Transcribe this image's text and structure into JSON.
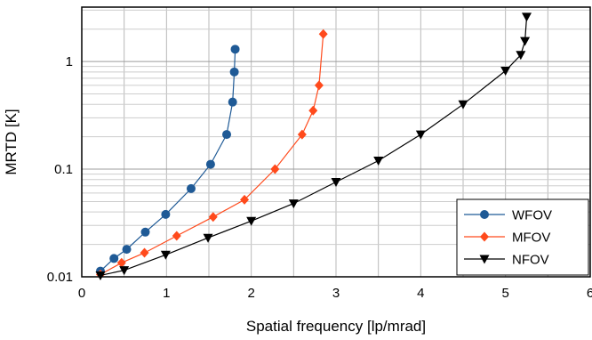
{
  "chart_data": {
    "type": "line",
    "title": "",
    "xlabel": "Spatial frequency [lp/mrad]",
    "ylabel": "MRTD [K]",
    "xlim": [
      0,
      6
    ],
    "ylim": [
      0.01,
      3.2
    ],
    "y_scale": "log",
    "grid": true,
    "legend_position": "bottom-right",
    "x_ticks": [
      "0",
      "1",
      "2",
      "3",
      "4",
      "5",
      "6"
    ],
    "y_ticks": [
      {
        "value": 0.01,
        "label": "0.01"
      },
      {
        "value": 0.1,
        "label": "0.1"
      },
      {
        "value": 1,
        "label": "1"
      }
    ],
    "series": [
      {
        "name": "WFOV",
        "color": "#1f5a96",
        "marker": "circle",
        "x": [
          0.22,
          0.38,
          0.53,
          0.75,
          0.99,
          1.29,
          1.52,
          1.71,
          1.78,
          1.8,
          1.81
        ],
        "y": [
          0.0113,
          0.0148,
          0.018,
          0.026,
          0.038,
          0.066,
          0.111,
          0.21,
          0.42,
          0.8,
          1.3
        ]
      },
      {
        "name": "MFOV",
        "color": "#ff4a1c",
        "marker": "diamond",
        "x": [
          0.22,
          0.47,
          0.74,
          1.12,
          1.55,
          1.92,
          2.28,
          2.6,
          2.73,
          2.8,
          2.85
        ],
        "y": [
          0.0105,
          0.0135,
          0.0167,
          0.024,
          0.036,
          0.052,
          0.1,
          0.21,
          0.35,
          0.6,
          1.8
        ]
      },
      {
        "name": "NFOV",
        "color": "#000000",
        "marker": "triangle-down",
        "x": [
          0.22,
          0.5,
          0.99,
          1.49,
          2.0,
          2.5,
          3.0,
          3.5,
          4.0,
          4.5,
          5.0,
          5.18,
          5.23,
          5.25
        ],
        "y": [
          0.0103,
          0.0115,
          0.016,
          0.023,
          0.033,
          0.048,
          0.076,
          0.12,
          0.21,
          0.4,
          0.82,
          1.15,
          1.55,
          2.6
        ]
      }
    ]
  }
}
